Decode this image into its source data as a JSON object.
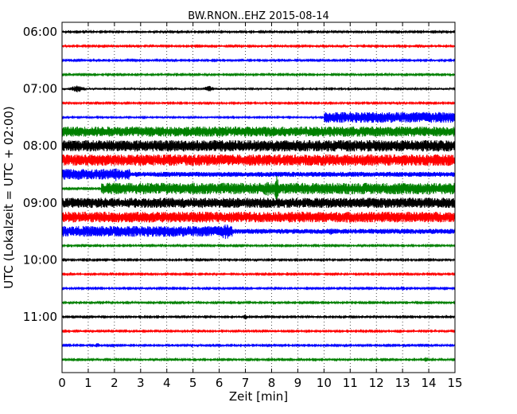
{
  "chart_data": {
    "type": "line",
    "title": "BW.RNON..EHZ 2015-08-14",
    "xlabel": "Zeit  [min]",
    "ylabel": "UTC (Lokalzeit = UTC + 02:00)",
    "xlim": [
      0,
      15
    ],
    "x_ticks": [
      "0",
      "1",
      "2",
      "3",
      "4",
      "5",
      "6",
      "7",
      "8",
      "9",
      "10",
      "11",
      "12",
      "13",
      "14",
      "15"
    ],
    "y_ticks": [
      "06:00",
      "07:00",
      "08:00",
      "09:00",
      "10:00",
      "11:00"
    ],
    "grid": "vertical dotted",
    "colors": [
      "#000000",
      "#ff0000",
      "#0000ff",
      "#008000"
    ],
    "series": [
      {
        "start": "06:00",
        "amplitude": 0.12,
        "bursts": [
          {
            "from": 14.9,
            "to": 15,
            "amp": 0.3
          }
        ]
      },
      {
        "start": "06:15",
        "amplitude": 0.12,
        "bursts": [
          {
            "from": 11.0,
            "to": 11.1,
            "amp": 0.25
          }
        ]
      },
      {
        "start": "06:30",
        "amplitude": 0.12,
        "bursts": [
          {
            "from": 1.5,
            "to": 1.7,
            "amp": 0.3
          },
          {
            "from": 14.1,
            "to": 14.3,
            "amp": 0.25
          }
        ]
      },
      {
        "start": "06:45",
        "amplitude": 0.12,
        "bursts": []
      },
      {
        "start": "07:00",
        "amplitude": 0.15,
        "bursts": [
          {
            "from": 0.3,
            "to": 0.9,
            "amp": 0.6
          },
          {
            "from": 5.4,
            "to": 5.8,
            "amp": 0.5
          }
        ]
      },
      {
        "start": "07:15",
        "amplitude": 0.12,
        "bursts": [
          {
            "from": 3.8,
            "to": 4.0,
            "amp": 0.25
          },
          {
            "from": 11.0,
            "to": 11.2,
            "amp": 0.2
          }
        ]
      },
      {
        "start": "07:30",
        "amplitude": 0.14,
        "bursts": [
          {
            "from": 10.0,
            "to": 15,
            "amp": 0.85
          }
        ]
      },
      {
        "start": "07:45",
        "amplitude": 0.8,
        "bursts": []
      },
      {
        "start": "08:00",
        "amplitude": 0.9,
        "bursts": []
      },
      {
        "start": "08:15",
        "amplitude": 0.9,
        "bursts": []
      },
      {
        "start": "08:30",
        "amplitude": 0.4,
        "bursts": [
          {
            "from": 0,
            "to": 2.6,
            "amp": 0.85
          },
          {
            "from": 2.0,
            "to": 2.1,
            "amp": 1.3
          }
        ]
      },
      {
        "start": "08:45",
        "amplitude": 0.1,
        "bursts": [
          {
            "from": 1.5,
            "to": 15,
            "amp": 0.9
          },
          {
            "from": 7.5,
            "to": 8.2,
            "amp": 1.2
          },
          {
            "from": 8.1,
            "to": 8.3,
            "amp": 2.2
          }
        ]
      },
      {
        "start": "09:00",
        "amplitude": 0.8,
        "bursts": []
      },
      {
        "start": "09:15",
        "amplitude": 0.85,
        "bursts": []
      },
      {
        "start": "09:30",
        "amplitude": 0.4,
        "bursts": [
          {
            "from": 0,
            "to": 6.5,
            "amp": 0.85
          },
          {
            "from": 6.0,
            "to": 6.5,
            "amp": 1.4
          },
          {
            "from": 10.0,
            "to": 10.5,
            "amp": 0.6
          }
        ]
      },
      {
        "start": "09:45",
        "amplitude": 0.12,
        "bursts": []
      },
      {
        "start": "10:00",
        "amplitude": 0.12,
        "bursts": []
      },
      {
        "start": "10:15",
        "amplitude": 0.12,
        "bursts": [
          {
            "from": 8.5,
            "to": 8.7,
            "amp": 0.3
          }
        ]
      },
      {
        "start": "10:30",
        "amplitude": 0.12,
        "bursts": [
          {
            "from": 12.9,
            "to": 13.1,
            "amp": 0.45
          }
        ]
      },
      {
        "start": "10:45",
        "amplitude": 0.12,
        "bursts": []
      },
      {
        "start": "11:00",
        "amplitude": 0.12,
        "bursts": [
          {
            "from": 5.4,
            "to": 5.6,
            "amp": 0.35
          },
          {
            "from": 6.9,
            "to": 7.1,
            "amp": 0.45
          }
        ]
      },
      {
        "start": "11:15",
        "amplitude": 0.12,
        "bursts": [
          {
            "from": 5.1,
            "to": 5.3,
            "amp": 0.3
          }
        ]
      },
      {
        "start": "11:30",
        "amplitude": 0.12,
        "bursts": [
          {
            "from": 1.2,
            "to": 1.5,
            "amp": 0.4
          },
          {
            "from": 4.1,
            "to": 4.3,
            "amp": 0.25
          }
        ]
      },
      {
        "start": "11:45",
        "amplitude": 0.12,
        "bursts": [
          {
            "from": 4.1,
            "to": 4.3,
            "amp": 0.3
          },
          {
            "from": 13.8,
            "to": 14.0,
            "amp": 0.45
          }
        ]
      }
    ]
  }
}
